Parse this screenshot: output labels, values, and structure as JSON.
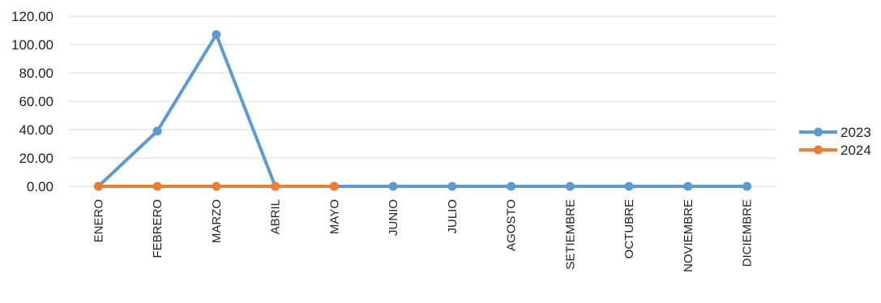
{
  "chart_data": {
    "type": "line",
    "title": "",
    "xlabel": "",
    "ylabel": "",
    "categories": [
      "ENERO",
      "FEBRERO",
      "MARZO",
      "ABRIL",
      "MAYO",
      "JUNIO",
      "JULIO",
      "AGOSTO",
      "SETIEMBRE",
      "OCTUBRE",
      "NOVIEMBRE",
      "DICIEMBRE"
    ],
    "ylim": [
      0,
      120
    ],
    "yticks": [
      "0.00",
      "20.00",
      "40.00",
      "60.00",
      "80.00",
      "100.00",
      "120.00"
    ],
    "grid": true,
    "legend_position": "right",
    "series": [
      {
        "name": "2023",
        "color": "#5b9bd5",
        "values": [
          0,
          39,
          107,
          0,
          0,
          0,
          0,
          0,
          0,
          0,
          0,
          0
        ]
      },
      {
        "name": "2024",
        "color": "#ed7d31",
        "values": [
          0,
          0,
          0,
          0,
          0,
          null,
          null,
          null,
          null,
          null,
          null,
          null
        ]
      }
    ]
  }
}
